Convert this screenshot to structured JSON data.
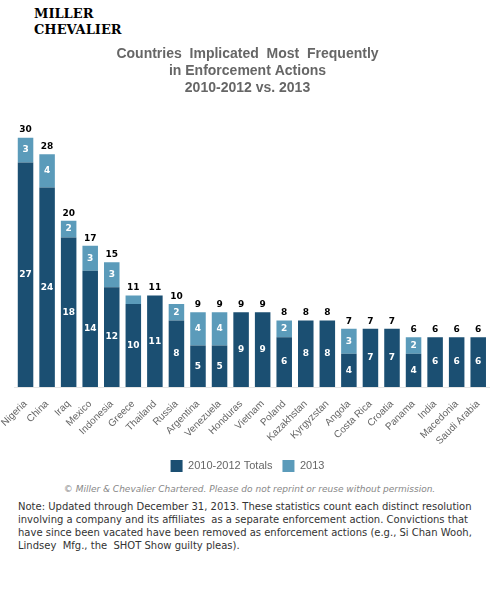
{
  "chart_data": {
    "type": "bar",
    "title": [
      "Countries  Implicated  Most  Frequently",
      "in Enforcement Actions",
      "2010-2012 vs. 2013"
    ],
    "categories": [
      "Nigeria",
      "China",
      "Iraq",
      "Mexico",
      "Indonesia",
      "Greece",
      "Thailand",
      "Russia",
      "Argentina",
      "Venezuela",
      "Honduras",
      "Vietnam",
      "Poland",
      "Kazakhstan",
      "Kyrgyzstan",
      "Angola",
      "Costa Rica",
      "Croatia",
      "Panama",
      "India",
      "Macedonia",
      "Saudi Arabia"
    ],
    "series": [
      {
        "name": "2010-2012 Totals",
        "color": "#1b4f72",
        "values": [
          27,
          24,
          18,
          14,
          12,
          10,
          11,
          8,
          5,
          5,
          9,
          9,
          6,
          8,
          8,
          4,
          7,
          7,
          4,
          6,
          6,
          6
        ]
      },
      {
        "name": "2013",
        "color": "#5b9bba",
        "values": [
          3,
          4,
          2,
          3,
          3,
          1,
          0,
          2,
          4,
          4,
          0,
          0,
          2,
          0,
          0,
          3,
          0,
          0,
          2,
          0,
          0,
          0
        ],
        "value_labels": [
          "3",
          "4",
          "2",
          "3",
          "3",
          null,
          null,
          "2",
          "4",
          "4",
          null,
          null,
          "2",
          null,
          null,
          "3",
          null,
          null,
          "2",
          null,
          null,
          null
        ]
      }
    ],
    "totals": [
      30,
      28,
      20,
      17,
      15,
      11,
      11,
      10,
      9,
      9,
      9,
      9,
      8,
      8,
      8,
      7,
      7,
      7,
      6,
      6,
      6,
      6
    ],
    "stacked": true,
    "data_labels": true,
    "ylim": [
      0,
      34
    ],
    "tick_labels": "x",
    "grid": false,
    "legend": "bottom",
    "logo": [
      "MILLER",
      "CHEVALIER"
    ],
    "copyright": "© Miller & Chevalier Chartered. Please do not reprint or reuse without permission.",
    "note": "Note: Updated through December 31, 2013. These statistics count each distinct resolution involving a company and its affiliates  as a separate enforcement action. Convictions that have since been vacated have been removed as enforcement actions (e.g., Si Chan Wooh, Lindsey  Mfg., the  SHOT Show guilty pleas)."
  }
}
